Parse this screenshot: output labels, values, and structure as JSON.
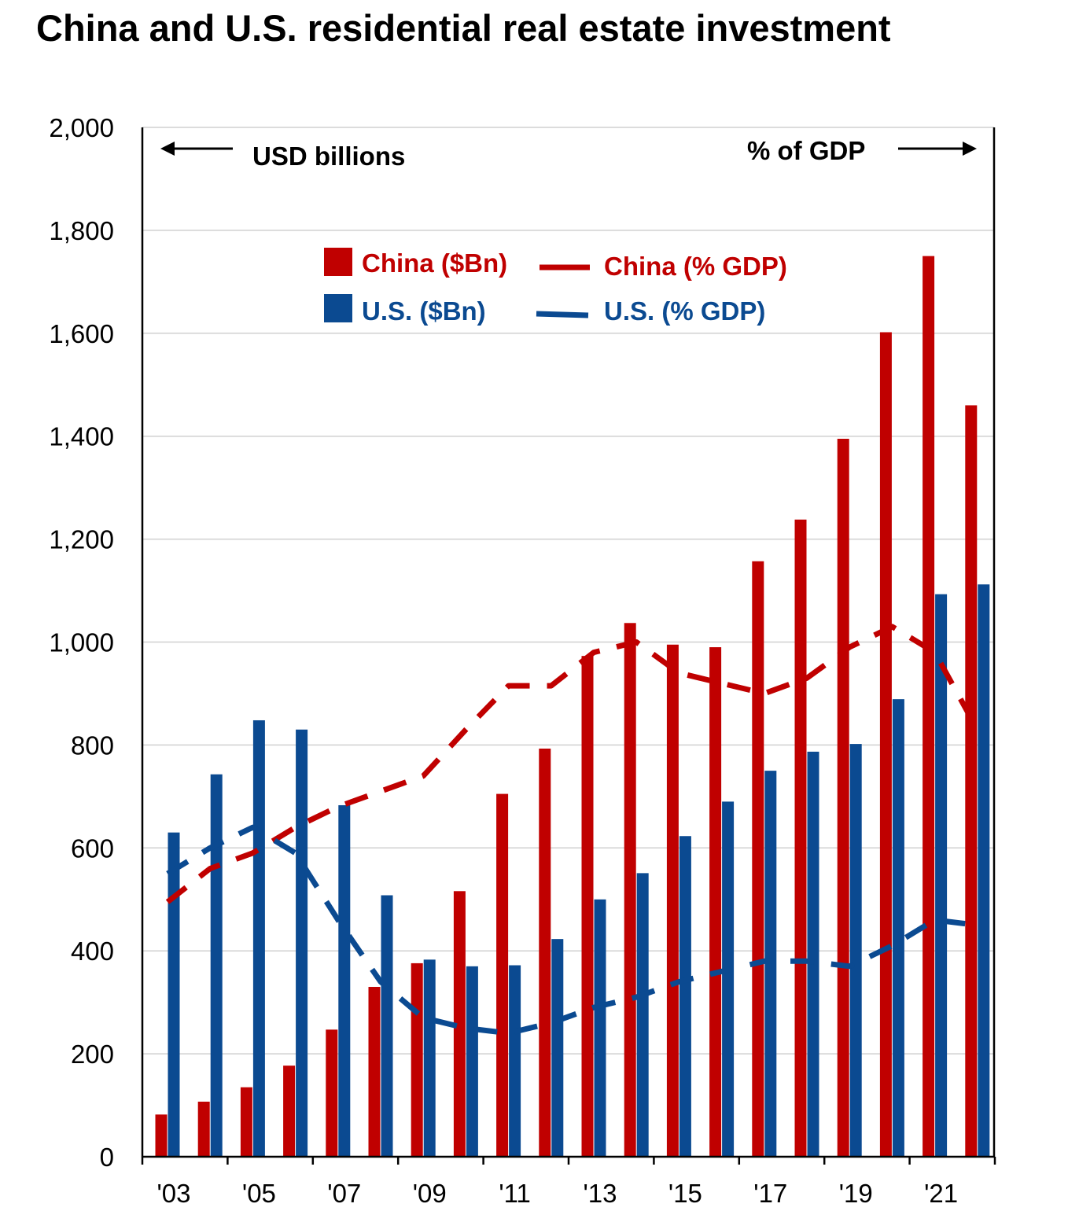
{
  "chart_data": {
    "type": "bar",
    "title": "China and U.S. residential real estate investment",
    "left_axis_annotation": "USD billions",
    "right_axis_annotation": "% of GDP",
    "ylim": [
      0,
      2000
    ],
    "y_ticks": [
      "0",
      "200",
      "400",
      "600",
      "800",
      "1,000",
      "1,200",
      "1,400",
      "1,600",
      "1,800",
      "2,000"
    ],
    "y_tick_values": [
      0,
      200,
      400,
      600,
      800,
      1000,
      1200,
      1400,
      1600,
      1800,
      2000
    ],
    "categories": [
      "'03",
      "'04",
      "'05",
      "'06",
      "'07",
      "'08",
      "'09",
      "'10",
      "'11",
      "'12",
      "'13",
      "'14",
      "'15",
      "'16",
      "'17",
      "'18",
      "'19",
      "'20",
      "'21",
      "'22"
    ],
    "x_tick_labels": [
      "'03",
      "'05",
      "'07",
      "'09",
      "'11",
      "'13",
      "'15",
      "'17",
      "'19",
      "'21"
    ],
    "grid": true,
    "legend_position": "top-center",
    "series": [
      {
        "name": "China ($Bn)",
        "kind": "bar",
        "color": "#c00000",
        "values": [
          82,
          107,
          135,
          177,
          247,
          330,
          376,
          516,
          705,
          793,
          973,
          1037,
          995,
          990,
          1157,
          1238,
          1395,
          1602,
          1750,
          1460
        ]
      },
      {
        "name": "U.S. ($Bn)",
        "kind": "bar",
        "color": "#0b4a91",
        "values": [
          630,
          743,
          848,
          830,
          683,
          508,
          383,
          370,
          372,
          423,
          500,
          551,
          623,
          690,
          750,
          787,
          802,
          889,
          1093,
          1112
        ]
      },
      {
        "name": "China (% GDP)",
        "kind": "line",
        "style": "dashed",
        "color": "#c00000",
        "axis": "right",
        "values": [
          495,
          560,
          590,
          640,
          680,
          710,
          740,
          830,
          915,
          915,
          980,
          1000,
          940,
          920,
          900,
          930,
          990,
          1030,
          980,
          830
        ]
      },
      {
        "name": "U.S. (% GDP)",
        "kind": "line",
        "style": "dashed",
        "color": "#0b4a91",
        "axis": "right",
        "values": [
          550,
          600,
          640,
          590,
          460,
          340,
          270,
          250,
          240,
          260,
          290,
          310,
          340,
          360,
          380,
          380,
          370,
          410,
          460,
          450
        ]
      }
    ]
  }
}
